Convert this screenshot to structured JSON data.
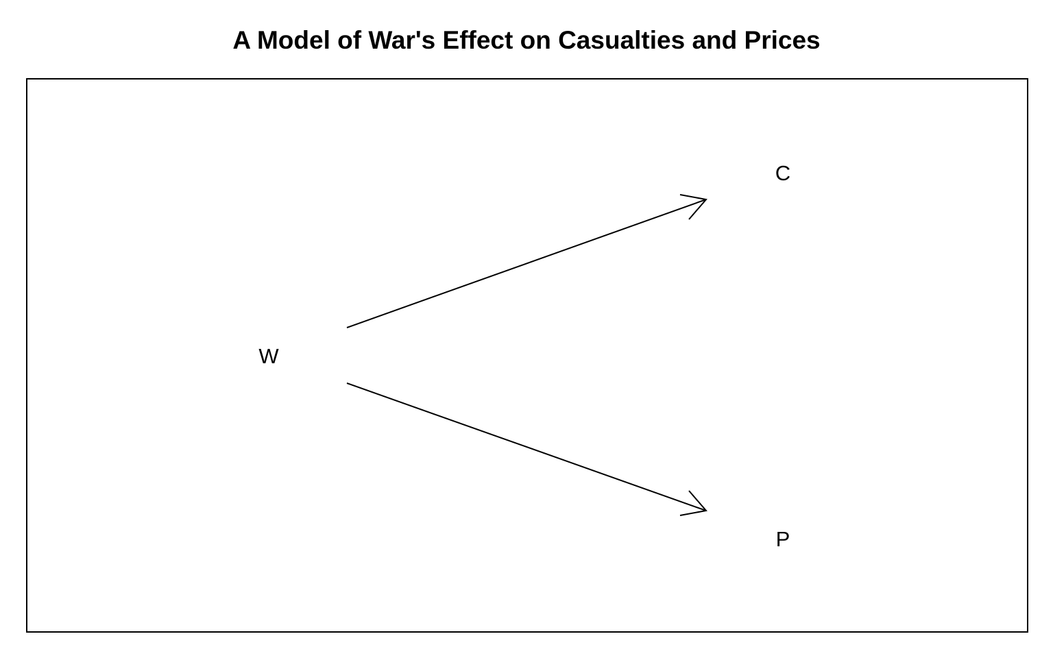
{
  "title": "A Model of War's Effect on Casualties and Prices",
  "nodes": [
    {
      "id": "war",
      "label": "W"
    },
    {
      "id": "casualties",
      "label": "C"
    },
    {
      "id": "prices",
      "label": "P"
    }
  ],
  "edges": [
    {
      "from": "war",
      "to": "casualties"
    },
    {
      "from": "war",
      "to": "prices"
    }
  ],
  "colors": {
    "stroke": "#000000",
    "background": "#ffffff"
  }
}
